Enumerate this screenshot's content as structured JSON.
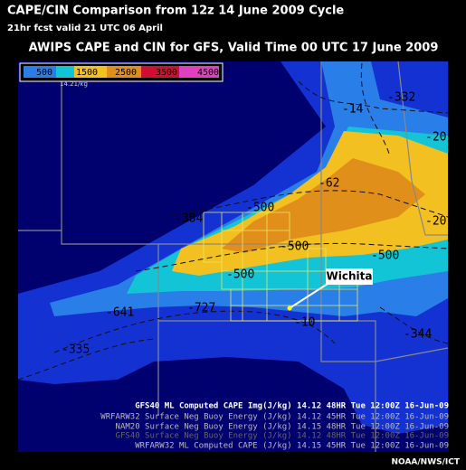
{
  "header": {
    "title": "CAPE/CIN Comparison from 12z 14 June 2009 Cycle",
    "subtitle": "21hr fcst valid 21 UTC 06 April"
  },
  "panel": {
    "title": "AWIPS CAPE and CIN for GFS, Valid Time 00 UTC 17 June 2009"
  },
  "legend": {
    "labels": [
      "500",
      "1500",
      "2500",
      "3500",
      "4500"
    ],
    "unit": "14.21/kg"
  },
  "contour_labels": [
    "-332",
    "-14",
    "-20",
    "-62",
    "-20",
    "-384",
    "-500",
    "-500",
    "-500",
    "-500",
    "-641",
    "-727",
    "-10",
    "-335",
    "-344"
  ],
  "city": "Wichita",
  "product_lines": [
    "GFS40 ML Computed CAPE Img(J/kg)  14.12  48HR Tue 12:00Z 16-Jun-09",
    "WRFARW32 Surface Neg Buoy Energy (J/kg)  14.12  45HR Tue 12:00Z 16-Jun-09",
    "NAM20 Surface Neg Buoy Energy (J/kg)  14.15  48HR Tue 12:00Z 16-Jun-09",
    "GFS40 Surface Neg Buoy Energy (J/kg)  14.12  48HR Tue 12:00Z 16-Jun-09",
    "WRFARW32 ML Computed CAPE (J/kg)  14.15  45HR Tue 12:00Z 16-Jun-09"
  ],
  "credit": "NOAA/NWS/ICT"
}
